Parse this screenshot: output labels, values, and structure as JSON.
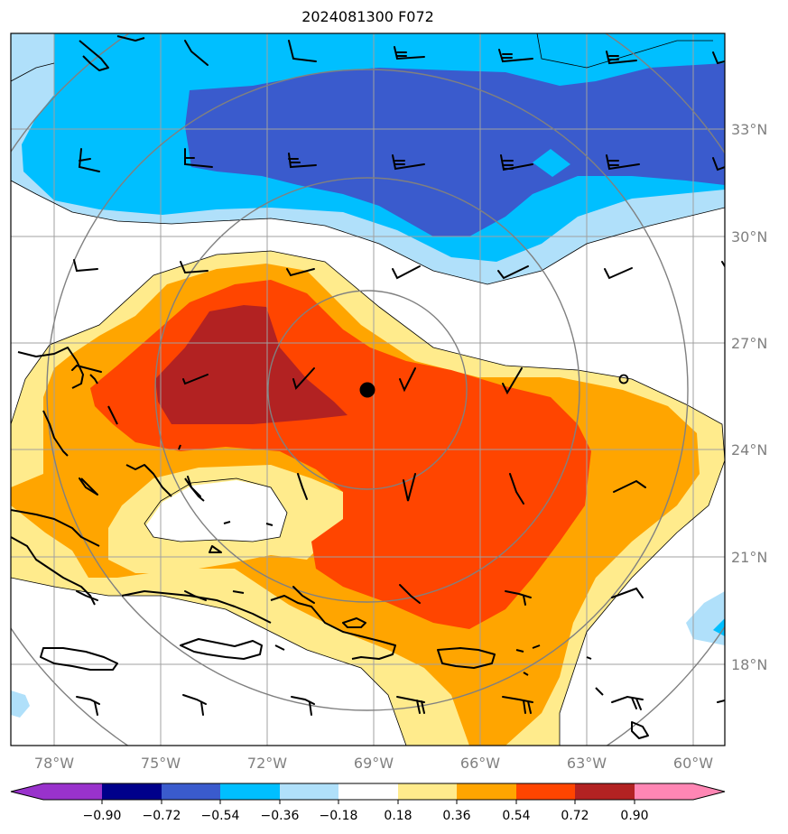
{
  "map": {
    "title": "2024081300 F072",
    "lon_labels": [
      "78°W",
      "75°W",
      "72°W",
      "69°W",
      "66°W",
      "63°W",
      "60°W"
    ],
    "lat_labels": [
      "33°N",
      "30°N",
      "27°N",
      "24°N",
      "21°N",
      "18°N"
    ],
    "storm_center": {
      "lat": 25.7,
      "lon": -69.2
    },
    "range_rings": "concentric circles centered on storm"
  },
  "colorbar": {
    "labels": [
      "−0.90",
      "−0.72",
      "−0.54",
      "−0.36",
      "−0.18",
      "0.18",
      "0.36",
      "0.54",
      "0.72",
      "0.90"
    ],
    "colors": [
      "#9932cc",
      "#00008b",
      "#3a5bcd",
      "#00bfff",
      "#b0e0fa",
      "#ffffff",
      "#ffeb8c",
      "#ffa500",
      "#ff4500",
      "#b22222",
      "#ff86b4"
    ]
  }
}
